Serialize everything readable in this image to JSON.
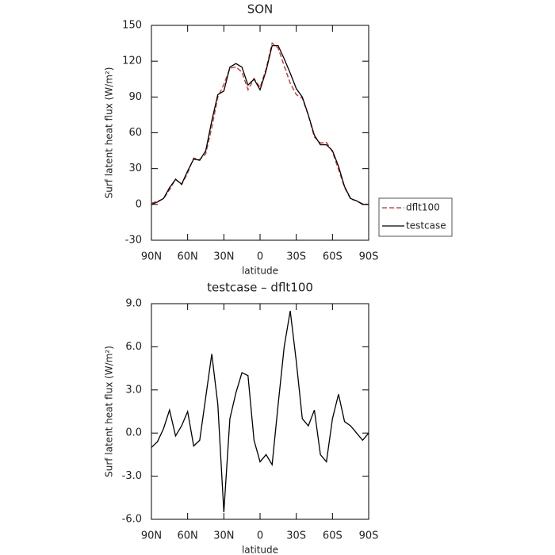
{
  "chart_data": [
    {
      "type": "line",
      "title": "SON",
      "xlabel": "latitude",
      "ylabel": "Surf latent heat flux (W/m²)",
      "x": [
        90,
        85,
        80,
        75,
        70,
        65,
        60,
        55,
        50,
        45,
        40,
        35,
        30,
        25,
        20,
        15,
        10,
        5,
        0,
        -5,
        -10,
        -15,
        -20,
        -25,
        -30,
        -35,
        -40,
        -45,
        -50,
        -55,
        -60,
        -65,
        -70,
        -75,
        -80,
        -85,
        -90
      ],
      "xlim": [
        90,
        -90
      ],
      "xticks": [
        {
          "value": 90,
          "label": "90N"
        },
        {
          "value": 60,
          "label": "60N"
        },
        {
          "value": 30,
          "label": "30N"
        },
        0,
        {
          "value": -30,
          "label": "30S"
        },
        {
          "value": -60,
          "label": "60S"
        },
        {
          "value": -90,
          "label": "90S"
        }
      ],
      "ylim": [
        -30,
        150
      ],
      "yticks": [
        -30,
        0,
        30,
        60,
        90,
        120,
        150
      ],
      "legend": "right",
      "series": [
        {
          "name": "dflt100",
          "color": "#e02020",
          "line_style": "dashed",
          "values": [
            1,
            2.6,
            4.7,
            12.4,
            21.2,
            16.5,
            26.5,
            38.9,
            37.5,
            42.5,
            64.5,
            90,
            100.5,
            114,
            115.2,
            110.8,
            96,
            105.5,
            98,
            113.5,
            135.2,
            131,
            116,
            101.5,
            92,
            89,
            74.5,
            56.4,
            51.5,
            52,
            44,
            29.3,
            14.2,
            4.5,
            3,
            0.5,
            0
          ]
        },
        {
          "name": "testcase",
          "color": "#000000",
          "line_style": "solid",
          "values": [
            0,
            2,
            5,
            14,
            21,
            17,
            28,
            38,
            37,
            45,
            70,
            92,
            95,
            115,
            118,
            115,
            100,
            105,
            96,
            112,
            133,
            133,
            122,
            110,
            97,
            90,
            75,
            58,
            50,
            50,
            45,
            32,
            15,
            5,
            3,
            0,
            0
          ]
        }
      ]
    },
    {
      "type": "line",
      "title": "testcase – dflt100",
      "xlabel": "latitude",
      "ylabel": "Surf latent heat flux (W/m²)",
      "x": [
        90,
        85,
        80,
        75,
        70,
        65,
        60,
        55,
        50,
        45,
        40,
        35,
        30,
        25,
        20,
        15,
        10,
        5,
        0,
        -5,
        -10,
        -15,
        -20,
        -25,
        -30,
        -35,
        -40,
        -45,
        -50,
        -55,
        -60,
        -65,
        -70,
        -75,
        -80,
        -85,
        -90
      ],
      "xlim": [
        90,
        -90
      ],
      "xticks": [
        {
          "value": 90,
          "label": "90N"
        },
        {
          "value": 60,
          "label": "60N"
        },
        {
          "value": 30,
          "label": "30N"
        },
        0,
        {
          "value": -30,
          "label": "30S"
        },
        {
          "value": -60,
          "label": "60S"
        },
        {
          "value": -90,
          "label": "90S"
        }
      ],
      "ylim": [
        -6,
        9
      ],
      "yticks": [
        {
          "value": -6,
          "label": "-6.0"
        },
        {
          "value": -3,
          "label": "-3.0"
        },
        {
          "value": 0,
          "label": "0.0"
        },
        {
          "value": 3,
          "label": "3.0"
        },
        {
          "value": 6,
          "label": "6.0"
        },
        {
          "value": 9,
          "label": "9.0"
        }
      ],
      "color": "#000000",
      "values": [
        -1,
        -0.6,
        0.3,
        1.6,
        -0.2,
        0.5,
        1.5,
        -0.9,
        -0.5,
        2.5,
        5.5,
        2,
        -5.5,
        1,
        2.8,
        4.2,
        4,
        -0.5,
        -2,
        -1.5,
        -2.2,
        2,
        6,
        8.5,
        5,
        1,
        0.5,
        1.6,
        -1.5,
        -2,
        1,
        2.7,
        0.8,
        0.5,
        0,
        -0.5,
        0
      ]
    }
  ]
}
